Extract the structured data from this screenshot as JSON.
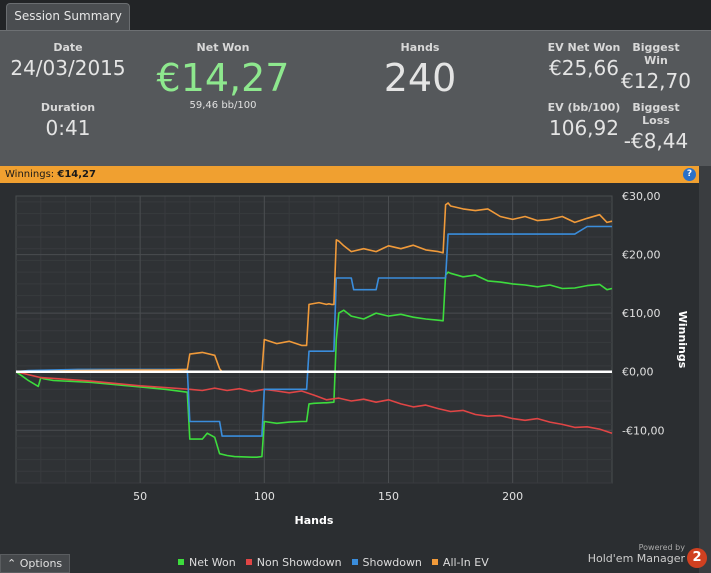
{
  "tab": {
    "label": "Session Summary"
  },
  "summary": {
    "date_label": "Date",
    "date": "24/03/2015",
    "duration_label": "Duration",
    "duration": "0:41",
    "net_won_label": "Net Won",
    "net_won": "€14,27",
    "bb100": "59,46 bb/100",
    "hands_label": "Hands",
    "hands": "240",
    "ev_net_won_label": "EV Net Won",
    "ev_net_won": "€25,66",
    "biggest_win_label": "Biggest Win",
    "biggest_win": "€12,70",
    "ev_bb100_label": "EV (bb/100)",
    "ev_bb100": "106,92",
    "biggest_loss_label": "Biggest Loss",
    "biggest_loss": "-€8,44"
  },
  "bar": {
    "label": "Winnings:",
    "value": "€14,27",
    "help_icon": "?"
  },
  "footer": {
    "options_label": "Options",
    "powered_by": "Powered by",
    "brand": "Hold'em Manager",
    "brand_mark": "2"
  },
  "chart_data": {
    "type": "line",
    "xlabel": "Hands",
    "ylabel": "Winnings",
    "xlim": [
      0,
      240
    ],
    "ylim": [
      -19,
      30
    ],
    "x_ticks": [
      50,
      100,
      150,
      200
    ],
    "y_ticks": [
      {
        "v": 30,
        "t": "€30,00"
      },
      {
        "v": 20,
        "t": "€20,00"
      },
      {
        "v": 10,
        "t": "€10,00"
      },
      {
        "v": 0,
        "t": "€0,00"
      },
      {
        "v": -10,
        "t": "-€10,00"
      }
    ],
    "grid": true,
    "series": [
      {
        "name": "Net Won",
        "color": "#3ddc3d",
        "x": [
          0,
          5,
          9,
          10,
          11,
          15,
          30,
          50,
          60,
          69,
          70,
          75,
          77,
          80,
          82,
          85,
          88,
          95,
          97,
          99,
          100,
          105,
          110,
          115,
          117,
          118,
          120,
          124,
          125,
          128,
          129,
          130,
          132,
          135,
          140,
          145,
          150,
          155,
          160,
          165,
          170,
          172,
          173,
          174,
          175,
          180,
          185,
          190,
          195,
          200,
          205,
          210,
          215,
          220,
          225,
          230,
          235,
          238,
          240
        ],
        "y": [
          0,
          -1.5,
          -2.5,
          -1,
          -1.2,
          -1.5,
          -1.8,
          -2.6,
          -3,
          -3.5,
          -11.5,
          -11.5,
          -10.5,
          -11.2,
          -14,
          -14.3,
          -14.5,
          -14.6,
          -14.6,
          -14.5,
          -8.5,
          -8.8,
          -8.6,
          -8.5,
          -8.5,
          -5.5,
          -5.4,
          -5.3,
          -5.3,
          -5.2,
          5.5,
          10,
          10.5,
          9.5,
          9,
          10,
          9.5,
          9.8,
          9.3,
          9,
          8.8,
          8.7,
          16.5,
          17,
          16.8,
          16.2,
          16.5,
          15.5,
          15.3,
          15,
          14.8,
          14.5,
          14.8,
          14.2,
          14.3,
          14.7,
          14.9,
          14,
          14.2
        ]
      },
      {
        "name": "Non Showdown",
        "color": "#e04545",
        "x": [
          0,
          10,
          20,
          30,
          40,
          50,
          60,
          70,
          75,
          80,
          85,
          90,
          95,
          100,
          105,
          110,
          115,
          120,
          125,
          130,
          135,
          140,
          145,
          150,
          155,
          160,
          165,
          170,
          175,
          180,
          185,
          190,
          195,
          200,
          205,
          210,
          215,
          220,
          225,
          230,
          235,
          240
        ],
        "y": [
          0,
          -1,
          -1.3,
          -1.6,
          -2,
          -2.4,
          -2.7,
          -3,
          -3.2,
          -2.8,
          -3.2,
          -2.9,
          -3.4,
          -3,
          -3.3,
          -3.6,
          -3.3,
          -4,
          -4.8,
          -4.5,
          -5,
          -4.7,
          -5.2,
          -4.8,
          -5.5,
          -6,
          -5.7,
          -6.3,
          -6.8,
          -6.6,
          -7.3,
          -7.6,
          -7.5,
          -8,
          -8.3,
          -8,
          -8.6,
          -9,
          -9.5,
          -9.4,
          -9.8,
          -10.5
        ]
      },
      {
        "name": "Showdown",
        "color": "#3a8ddc",
        "x": [
          0,
          5,
          25,
          69,
          70,
          82,
          83,
          97,
          98,
          99,
          100,
          115,
          116,
          117,
          118,
          125,
          126,
          128,
          129,
          135,
          136,
          145,
          146,
          155,
          156,
          173,
          174,
          200,
          225,
          230,
          240
        ],
        "y": [
          0,
          0.2,
          0.4,
          0.4,
          -8.5,
          -8.5,
          -11,
          -11,
          -11,
          -11,
          -3,
          -3,
          -3,
          -3,
          3.5,
          3.5,
          3.5,
          3.5,
          16,
          16,
          14,
          14,
          16,
          16,
          16,
          16,
          23.5,
          23.5,
          23.5,
          24.8,
          24.8
        ]
      },
      {
        "name": "All-In EV",
        "color": "#f09a3a",
        "x": [
          0,
          5,
          25,
          50,
          60,
          69,
          70,
          75,
          80,
          82,
          83,
          97,
          98,
          99,
          100,
          105,
          110,
          115,
          116,
          117,
          118,
          122,
          125,
          126,
          127,
          128,
          129,
          130,
          132,
          135,
          140,
          145,
          150,
          155,
          160,
          165,
          170,
          172,
          173,
          174,
          175,
          180,
          185,
          190,
          195,
          200,
          205,
          210,
          215,
          220,
          225,
          230,
          235,
          238,
          240
        ],
        "y": [
          0,
          0,
          0.2,
          0.3,
          0.3,
          0.4,
          3,
          3.3,
          2.8,
          0.5,
          0,
          0,
          0,
          0,
          5.5,
          4.8,
          5.2,
          4.5,
          4.5,
          4.5,
          11.5,
          11.8,
          11.5,
          11.6,
          11.5,
          11.5,
          22.5,
          22.3,
          21.5,
          20.5,
          21,
          20.5,
          21.5,
          21,
          21.6,
          20.8,
          20.5,
          20.3,
          28.5,
          28.8,
          28.3,
          27.8,
          27.5,
          27.8,
          26.5,
          26,
          26.5,
          25.8,
          26,
          26.5,
          25.5,
          26.2,
          26.8,
          25.5,
          25.7
        ]
      }
    ]
  }
}
